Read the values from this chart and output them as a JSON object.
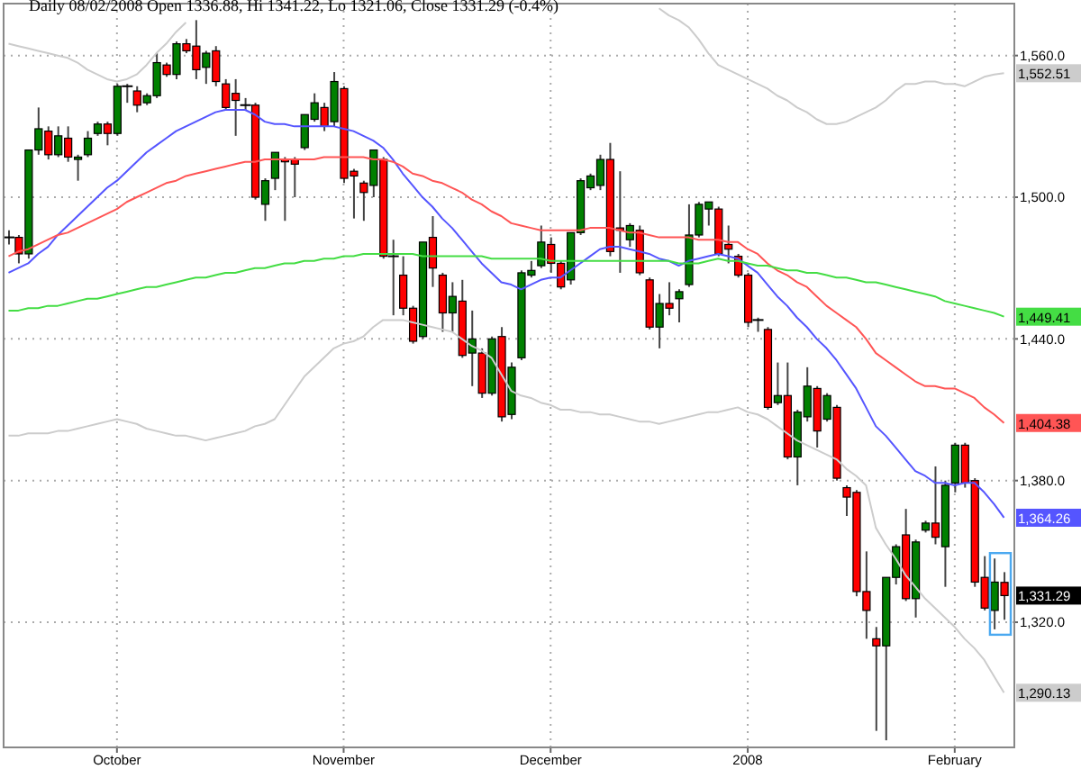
{
  "chart_data": {
    "type": "candlestick",
    "title": "Daily 08/02/2008 Open 1336.88, Hi 1341.22, Lo 1321.06, Close 1331.29 (-0.4%)",
    "categories": [
      null,
      null,
      null,
      null,
      null,
      null,
      null,
      null,
      null,
      null,
      null,
      "October",
      null,
      null,
      null,
      null,
      null,
      null,
      null,
      null,
      null,
      null,
      null,
      null,
      null,
      null,
      null,
      null,
      null,
      null,
      null,
      null,
      null,
      null,
      "November",
      null,
      null,
      null,
      null,
      null,
      null,
      null,
      null,
      null,
      null,
      null,
      null,
      null,
      null,
      null,
      null,
      null,
      null,
      null,
      null,
      "December",
      null,
      null,
      null,
      null,
      null,
      null,
      null,
      null,
      null,
      null,
      null,
      null,
      null,
      null,
      null,
      null,
      null,
      null,
      null,
      "2008",
      null,
      null,
      null,
      null,
      null,
      null,
      null,
      null,
      null,
      null,
      null,
      null,
      null,
      null,
      null,
      null,
      null,
      null,
      null,
      null,
      "February",
      null,
      null,
      null,
      null,
      null
    ],
    "ohlc": [
      [
        1483,
        1486,
        1480,
        1483
      ],
      [
        1483,
        1484,
        1472,
        1476
      ],
      [
        1476,
        1520,
        1474,
        1520
      ],
      [
        1520,
        1538,
        1518,
        1529
      ],
      [
        1528,
        1530,
        1516,
        1518
      ],
      [
        1518,
        1530,
        1517,
        1526
      ],
      [
        1525,
        1530,
        1515,
        1517
      ],
      [
        1516,
        1518,
        1507,
        1517
      ],
      [
        1518,
        1528,
        1517,
        1525
      ],
      [
        1527,
        1532,
        1526,
        1531
      ],
      [
        1531,
        1532,
        1522,
        1527
      ],
      [
        1527,
        1548,
        1526,
        1547
      ],
      [
        1547,
        1548,
        1540,
        1547
      ],
      [
        1545,
        1547,
        1536,
        1539
      ],
      [
        1540,
        1544,
        1539,
        1543
      ],
      [
        1543,
        1561,
        1542,
        1557
      ],
      [
        1556,
        1557,
        1551,
        1552
      ],
      [
        1552,
        1566,
        1550,
        1565
      ],
      [
        1565,
        1567,
        1561,
        1562
      ],
      [
        1564,
        1575,
        1550,
        1554
      ],
      [
        1555,
        1562,
        1548,
        1561
      ],
      [
        1562,
        1564,
        1547,
        1549
      ],
      [
        1548,
        1550,
        1537,
        1538
      ],
      [
        1544,
        1550,
        1526,
        1541
      ],
      [
        1539,
        1542,
        1537,
        1539
      ],
      [
        1539,
        1540,
        1499,
        1500
      ],
      [
        1497,
        1508,
        1490,
        1507
      ],
      [
        1508,
        1519,
        1503,
        1519
      ],
      [
        1516,
        1517,
        1490,
        1515
      ],
      [
        1516,
        1517,
        1500,
        1514
      ],
      [
        1521,
        1535,
        1520,
        1535
      ],
      [
        1533,
        1544,
        1532,
        1540
      ],
      [
        1538,
        1540,
        1528,
        1530
      ],
      [
        1532,
        1553,
        1530,
        1549
      ],
      [
        1546,
        1547,
        1506,
        1508
      ],
      [
        1511,
        1512,
        1491,
        1509
      ],
      [
        1506,
        1507,
        1490,
        1502
      ],
      [
        1505,
        1520,
        1500,
        1520
      ],
      [
        1516,
        1517,
        1474,
        1475
      ],
      [
        1475,
        1482,
        1450,
        1475
      ],
      [
        1467,
        1475,
        1450,
        1453
      ],
      [
        1453,
        1454,
        1438,
        1439
      ],
      [
        1441,
        1481,
        1440,
        1481
      ],
      [
        1483,
        1492,
        1462,
        1470
      ],
      [
        1467,
        1468,
        1443,
        1451
      ],
      [
        1451,
        1464,
        1443,
        1458
      ],
      [
        1456,
        1465,
        1432,
        1433
      ],
      [
        1434,
        1452,
        1420,
        1440
      ],
      [
        1434,
        1436,
        1415,
        1417
      ],
      [
        1417,
        1441,
        1416,
        1440
      ],
      [
        1441,
        1445,
        1405,
        1407
      ],
      [
        1408,
        1430,
        1406,
        1428
      ],
      [
        1432,
        1469,
        1431,
        1468
      ],
      [
        1467,
        1473,
        1466,
        1469
      ],
      [
        1471,
        1488,
        1470,
        1481
      ],
      [
        1480,
        1483,
        1468,
        1472
      ],
      [
        1472,
        1473,
        1461,
        1462
      ],
      [
        1465,
        1485,
        1463,
        1485
      ],
      [
        1485,
        1508,
        1484,
        1507
      ],
      [
        1504,
        1510,
        1503,
        1509
      ],
      [
        1505,
        1518,
        1503,
        1516
      ],
      [
        1516,
        1523,
        1475,
        1477
      ],
      [
        1487,
        1511,
        1468,
        1486
      ],
      [
        1482,
        1489,
        1479,
        1488
      ],
      [
        1486,
        1488,
        1467,
        1468
      ],
      [
        1465,
        1466,
        1444,
        1445
      ],
      [
        1445,
        1459,
        1436,
        1455
      ],
      [
        1455,
        1464,
        1450,
        1453
      ],
      [
        1457,
        1461,
        1447,
        1460
      ],
      [
        1463,
        1497,
        1462,
        1484
      ],
      [
        1484,
        1498,
        1483,
        1497
      ],
      [
        1495,
        1498,
        1488,
        1498
      ],
      [
        1495,
        1496,
        1475,
        1476
      ],
      [
        1480,
        1488,
        1472,
        1478
      ],
      [
        1475,
        1476,
        1466,
        1467
      ],
      [
        1467,
        1468,
        1445,
        1447
      ],
      [
        1448,
        1449,
        1443,
        1448
      ],
      [
        1444,
        1445,
        1410,
        1411
      ],
      [
        1413,
        1430,
        1412,
        1416
      ],
      [
        1416,
        1430,
        1389,
        1390
      ],
      [
        1390,
        1410,
        1378,
        1409
      ],
      [
        1407,
        1428,
        1405,
        1420
      ],
      [
        1419,
        1420,
        1394,
        1401
      ],
      [
        1406,
        1417,
        1405,
        1416
      ],
      [
        1411,
        1412,
        1380,
        1381
      ],
      [
        1377,
        1378,
        1365,
        1373
      ],
      [
        1375,
        1376,
        1331,
        1333
      ],
      [
        1333,
        1350,
        1313,
        1325
      ],
      [
        1313,
        1318,
        1274,
        1310
      ],
      [
        1310,
        1339,
        1270,
        1339
      ],
      [
        1339,
        1353,
        1336,
        1352
      ],
      [
        1357,
        1368,
        1329,
        1330
      ],
      [
        1330,
        1355,
        1322,
        1354
      ],
      [
        1359,
        1363,
        1358,
        1362
      ],
      [
        1362,
        1386,
        1353,
        1356
      ],
      [
        1352,
        1380,
        1335,
        1378
      ],
      [
        1379,
        1396,
        1375,
        1395
      ],
      [
        1395,
        1396,
        1377,
        1379
      ],
      [
        1380,
        1381,
        1335,
        1337
      ],
      [
        1339,
        1348,
        1325,
        1326
      ],
      [
        1325,
        1347,
        1317,
        1337
      ],
      [
        1336.88,
        1341.22,
        1321.06,
        1331.29
      ]
    ],
    "colors": [
      "#000000",
      "#ff0000",
      "#008000",
      "#008000",
      "#ff0000",
      "#008000",
      "#ff0000",
      "#008000",
      "#008000",
      "#008000",
      "#ff0000",
      "#008000",
      "#000000",
      "#ff0000",
      "#008000",
      "#008000",
      "#ff0000",
      "#008000",
      "#ff0000",
      "#ff0000",
      "#008000",
      "#ff0000",
      "#ff0000",
      "#ff0000",
      "#000000",
      "#ff0000",
      "#008000",
      "#008000",
      "#ff0000",
      "#ff0000",
      "#008000",
      "#008000",
      "#ff0000",
      "#008000",
      "#ff0000",
      "#ff0000",
      "#ff0000",
      "#008000",
      "#ff0000",
      "#000000",
      "#ff0000",
      "#ff0000",
      "#008000",
      "#ff0000",
      "#ff0000",
      "#008000",
      "#ff0000",
      "#008000",
      "#ff0000",
      "#008000",
      "#ff0000",
      "#008000",
      "#008000",
      "#008000",
      "#008000",
      "#ff0000",
      "#ff0000",
      "#008000",
      "#008000",
      "#008000",
      "#008000",
      "#ff0000",
      "#ff0000",
      "#008000",
      "#ff0000",
      "#ff0000",
      "#008000",
      "#ff0000",
      "#008000",
      "#008000",
      "#008000",
      "#008000",
      "#ff0000",
      "#ff0000",
      "#ff0000",
      "#ff0000",
      "#000000",
      "#ff0000",
      "#008000",
      "#ff0000",
      "#008000",
      "#008000",
      "#ff0000",
      "#008000",
      "#ff0000",
      "#ff0000",
      "#ff0000",
      "#ff0000",
      "#ff0000",
      "#008000",
      "#008000",
      "#ff0000",
      "#008000",
      "#008000",
      "#ff0000",
      "#008000",
      "#008000",
      "#ff0000",
      "#ff0000",
      "#ff0000",
      "#008000",
      "#ff0000"
    ],
    "series": [
      {
        "type": "line",
        "color": "#5555ff",
        "values": [
          1468,
          1470,
          1472,
          1476,
          1479,
          1484,
          1488,
          1492,
          1496,
          1500,
          1504,
          1507,
          1511,
          1515,
          1519,
          1522,
          1525,
          1528,
          1530,
          1532,
          1534,
          1536,
          1537,
          1537,
          1537,
          1535,
          1532,
          1531,
          1531,
          1530,
          1530,
          1530,
          1530,
          1530,
          1529,
          1528,
          1526,
          1524,
          1521,
          1516,
          1510,
          1505,
          1500,
          1496,
          1491,
          1487,
          1482,
          1477,
          1472,
          1468,
          1464,
          1463,
          1461,
          1463,
          1465,
          1466,
          1466,
          1469,
          1472,
          1475,
          1478,
          1479,
          1479,
          1478,
          1477,
          1476,
          1474,
          1473,
          1471,
          1473,
          1474,
          1475,
          1476,
          1475,
          1474,
          1471,
          1468,
          1463,
          1458,
          1454,
          1449,
          1445,
          1440,
          1436,
          1431,
          1425,
          1419,
          1411,
          1403,
          1399,
          1394,
          1389,
          1384,
          1382,
          1379,
          1379,
          1378,
          1379,
          1379,
          1375,
          1370,
          1364.26
        ],
        "value_labels": [
          null,
          null,
          null,
          null,
          null,
          null,
          null,
          null,
          null,
          null,
          null,
          null,
          null,
          null,
          null,
          null,
          null,
          null,
          null,
          null,
          null,
          null,
          null,
          null,
          null,
          null,
          null,
          null,
          null,
          null,
          null,
          null,
          null,
          null,
          null,
          null,
          null,
          null,
          null,
          null,
          null,
          null,
          null,
          null,
          null,
          null,
          null,
          null,
          null,
          null,
          null,
          null,
          null,
          null,
          null,
          null,
          null,
          null,
          null,
          null,
          null,
          null,
          null,
          null,
          null,
          null,
          null,
          null,
          null,
          null,
          null,
          null,
          null,
          null,
          null,
          null,
          null,
          null,
          null,
          null,
          null,
          null,
          null,
          null,
          null,
          null,
          null,
          null,
          null,
          null,
          null,
          null,
          null,
          null,
          null,
          null,
          null,
          null,
          null,
          null,
          null,
          "1,364.26"
        ]
      },
      {
        "type": "line",
        "color": "#ff5555",
        "values": [
          1475,
          1477,
          1478,
          1480,
          1482,
          1484,
          1485,
          1487,
          1489,
          1491,
          1493,
          1495,
          1498,
          1500,
          1502,
          1504,
          1506,
          1507,
          1509,
          1510,
          1511,
          1512,
          1513,
          1514,
          1515,
          1515,
          1516,
          1516,
          1516,
          1516,
          1516,
          1516,
          1517,
          1517,
          1517,
          1517,
          1517,
          1516,
          1516,
          1515,
          1513,
          1510,
          1509,
          1507,
          1506,
          1504,
          1502,
          1499,
          1497,
          1494,
          1492,
          1489,
          1488,
          1487,
          1486,
          1486,
          1486,
          1486,
          1486,
          1487,
          1487,
          1487,
          1486,
          1485,
          1485,
          1484,
          1483,
          1483,
          1483,
          1483,
          1482,
          1482,
          1482,
          1481,
          1481,
          1478,
          1476,
          1472,
          1469,
          1467,
          1464,
          1462,
          1458,
          1454,
          1451,
          1448,
          1445,
          1440,
          1434,
          1431,
          1428,
          1425,
          1422,
          1420,
          1420,
          1419,
          1419,
          1417,
          1415,
          1411,
          1408,
          1404.38
        ],
        "value_labels": [
          null,
          null,
          null,
          null,
          null,
          null,
          null,
          null,
          null,
          null,
          null,
          null,
          null,
          null,
          null,
          null,
          null,
          null,
          null,
          null,
          null,
          null,
          null,
          null,
          null,
          null,
          null,
          null,
          null,
          null,
          null,
          null,
          null,
          null,
          null,
          null,
          null,
          null,
          null,
          null,
          null,
          null,
          null,
          null,
          null,
          null,
          null,
          null,
          null,
          null,
          null,
          null,
          null,
          null,
          null,
          null,
          null,
          null,
          null,
          null,
          null,
          null,
          null,
          null,
          null,
          null,
          null,
          null,
          null,
          null,
          null,
          null,
          null,
          null,
          null,
          null,
          null,
          null,
          null,
          null,
          null,
          null,
          null,
          null,
          null,
          null,
          null,
          null,
          null,
          null,
          null,
          null,
          null,
          null,
          null,
          null,
          null,
          null,
          null,
          null,
          null,
          "1,404.38"
        ]
      },
      {
        "type": "line",
        "color": "#44dd44",
        "values": [
          1452,
          1452,
          1453,
          1453,
          1454,
          1454,
          1455,
          1456,
          1457,
          1457,
          1458,
          1459,
          1460,
          1461,
          1462,
          1462,
          1463,
          1464,
          1465,
          1466,
          1466,
          1467,
          1468,
          1468,
          1469,
          1470,
          1470,
          1471,
          1472,
          1472,
          1473,
          1473,
          1474,
          1474,
          1475,
          1475,
          1476,
          1476,
          1476,
          1476,
          1476,
          1476,
          1475,
          1475,
          1475,
          1475,
          1475,
          1475,
          1475,
          1474,
          1474,
          1474,
          1474,
          1474,
          1474,
          1473,
          1473,
          1473,
          1473,
          1473,
          1473,
          1473,
          1473,
          1473,
          1473,
          1473,
          1473,
          1473,
          1472,
          1472,
          1472,
          1473,
          1474,
          1473,
          1473,
          1472,
          1471,
          1471,
          1470,
          1469,
          1469,
          1468,
          1468,
          1467,
          1466,
          1466,
          1465,
          1464,
          1464,
          1463,
          1462,
          1461,
          1460,
          1459,
          1458,
          1456,
          1455,
          1454,
          1453,
          1452,
          1451,
          1449.41
        ],
        "value_labels": [
          null,
          null,
          null,
          null,
          null,
          null,
          null,
          null,
          null,
          null,
          null,
          null,
          null,
          null,
          null,
          null,
          null,
          null,
          null,
          null,
          null,
          null,
          null,
          null,
          null,
          null,
          null,
          null,
          null,
          null,
          null,
          null,
          null,
          null,
          null,
          null,
          null,
          null,
          null,
          null,
          null,
          null,
          null,
          null,
          null,
          null,
          null,
          null,
          null,
          null,
          null,
          null,
          null,
          null,
          null,
          null,
          null,
          null,
          null,
          null,
          null,
          null,
          null,
          null,
          null,
          null,
          null,
          null,
          null,
          null,
          null,
          null,
          null,
          null,
          null,
          null,
          null,
          null,
          null,
          null,
          null,
          null,
          null,
          null,
          null,
          null,
          null,
          null,
          null,
          null,
          null,
          null,
          null,
          null,
          null,
          null,
          null,
          null,
          null,
          null,
          null,
          "1,449.41"
        ]
      },
      {
        "type": "line",
        "color": "#cccccc",
        "values": [
          1565,
          1564,
          1563,
          1562,
          1561,
          1560,
          1559,
          1557,
          1554,
          1552,
          1550,
          1549,
          1550,
          1552,
          1556,
          1561,
          1565,
          1570,
          1574,
          null,
          null,
          null,
          null,
          null,
          null,
          null,
          null,
          null,
          null,
          null,
          null,
          null,
          null,
          null,
          null,
          null,
          null,
          null,
          null,
          null,
          null,
          null,
          null,
          null,
          null,
          null,
          null,
          null,
          null,
          null,
          null,
          null,
          null,
          null,
          null,
          null,
          null,
          null,
          null,
          null,
          null,
          null,
          null,
          null,
          null,
          null,
          1580,
          1577,
          1575,
          1572,
          1567,
          1561,
          1556,
          1554,
          1552,
          1550,
          1548,
          1546,
          1543,
          1541,
          1538,
          1536,
          1533,
          1531,
          1531,
          1532,
          1534,
          1536,
          1538,
          1541,
          1545,
          1548,
          1548,
          1549,
          1549,
          1548,
          1548,
          1547,
          1549,
          1551,
          1552,
          1552.51
        ],
        "value_labels": [
          null,
          null,
          null,
          null,
          null,
          null,
          null,
          null,
          null,
          null,
          null,
          null,
          null,
          null,
          null,
          null,
          null,
          null,
          null,
          null,
          null,
          null,
          null,
          null,
          null,
          null,
          null,
          null,
          null,
          null,
          null,
          null,
          null,
          null,
          null,
          null,
          null,
          null,
          null,
          null,
          null,
          null,
          null,
          null,
          null,
          null,
          null,
          null,
          null,
          null,
          null,
          null,
          null,
          null,
          null,
          null,
          null,
          null,
          null,
          null,
          null,
          null,
          null,
          null,
          null,
          null,
          null,
          null,
          null,
          null,
          null,
          null,
          null,
          null,
          null,
          null,
          null,
          null,
          null,
          null,
          null,
          null,
          null,
          null,
          null,
          null,
          null,
          null,
          null,
          null,
          null,
          null,
          null,
          null,
          null,
          null,
          null,
          null,
          null,
          null,
          null,
          "1,552.51"
        ]
      },
      {
        "type": "line",
        "color": "#cccccc",
        "values": [
          1399,
          1399,
          1400,
          1400,
          1400,
          1401,
          1401,
          1402,
          1403,
          1404,
          1405,
          1406,
          1405,
          1404,
          1402,
          1401,
          1400,
          1399,
          1399,
          1398,
          1397,
          1398,
          1399,
          1400,
          1401,
          1403,
          1404,
          1406,
          1412,
          1418,
          1424,
          1428,
          1432,
          1436,
          1438,
          1439,
          1441,
          1445,
          1448,
          1448,
          1448,
          1447,
          1446,
          1445,
          1444,
          1443,
          1440,
          1437,
          1435,
          1432,
          1425,
          1418,
          1416,
          1415,
          1413,
          1412,
          1410,
          1410,
          1409,
          1409,
          1408,
          1408,
          1407,
          1406,
          1405,
          1405,
          1404,
          1405,
          1406,
          1407,
          1408,
          1409,
          1409,
          1410,
          1411,
          1409,
          1408,
          1406,
          1403,
          1400,
          1397,
          1395,
          1393,
          1391,
          1389,
          1385,
          1382,
          1378,
          1360,
          1353,
          1347,
          1340,
          1335,
          1330,
          1326,
          1322,
          1318,
          1313,
          1309,
          1304,
          1297,
          1290.13
        ],
        "value_labels": [
          null,
          null,
          null,
          null,
          null,
          null,
          null,
          null,
          null,
          null,
          null,
          null,
          null,
          null,
          null,
          null,
          null,
          null,
          null,
          null,
          null,
          null,
          null,
          null,
          null,
          null,
          null,
          null,
          null,
          null,
          null,
          null,
          null,
          null,
          null,
          null,
          null,
          null,
          null,
          null,
          null,
          null,
          null,
          null,
          null,
          null,
          null,
          null,
          null,
          null,
          null,
          null,
          null,
          null,
          null,
          null,
          null,
          null,
          null,
          null,
          null,
          null,
          null,
          null,
          null,
          null,
          null,
          null,
          null,
          null,
          null,
          null,
          null,
          null,
          null,
          null,
          null,
          null,
          null,
          null,
          null,
          null,
          null,
          null,
          null,
          null,
          null,
          null,
          null,
          null,
          null,
          null,
          null,
          null,
          null,
          null,
          null,
          null,
          null,
          null,
          null,
          "1,290.13"
        ]
      }
    ],
    "value_labels": [
      null,
      null,
      null,
      null,
      null,
      null,
      null,
      null,
      null,
      null,
      null,
      null,
      null,
      null,
      null,
      null,
      null,
      null,
      null,
      null,
      null,
      null,
      null,
      null,
      null,
      null,
      null,
      null,
      null,
      null,
      null,
      null,
      null,
      null,
      null,
      null,
      null,
      null,
      null,
      null,
      null,
      null,
      null,
      null,
      null,
      null,
      null,
      null,
      null,
      null,
      null,
      null,
      null,
      null,
      null,
      null,
      null,
      null,
      null,
      null,
      null,
      null,
      null,
      null,
      null,
      null,
      null,
      null,
      null,
      null,
      null,
      null,
      null,
      null,
      null,
      null,
      null,
      null,
      null,
      null,
      null,
      null,
      null,
      null,
      null,
      null,
      null,
      null,
      null,
      null,
      null,
      null,
      null,
      null,
      null,
      null,
      null,
      null,
      null,
      null,
      null,
      "1,331.29"
    ],
    "ylim": [
      1267,
      1582
    ],
    "yticks": [
      {
        "value": 1320,
        "label": "1,320.0"
      },
      {
        "value": 1380,
        "label": "1,380.0"
      },
      {
        "value": 1440,
        "label": "1,440.0"
      },
      {
        "value": 1500,
        "label": "1,500.0"
      },
      {
        "value": 1560,
        "label": "1,560.0"
      }
    ],
    "grid": true
  }
}
